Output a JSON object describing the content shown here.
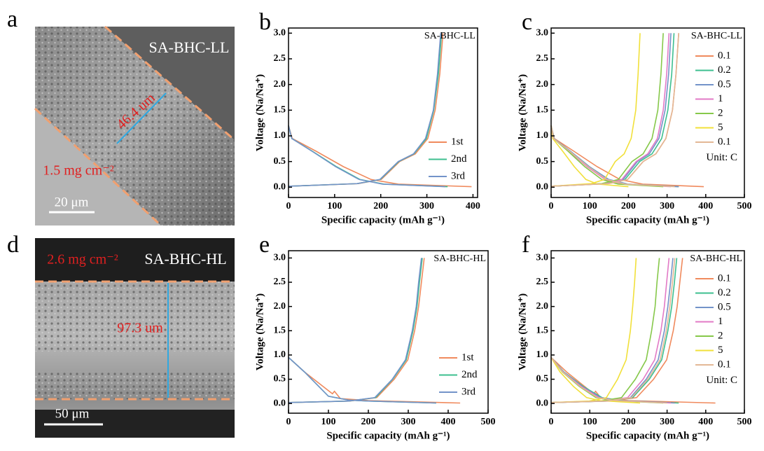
{
  "images": [
    {
      "panel": "a",
      "label": "SA-BHC-LL",
      "thickness": "46.4 um",
      "loading": "1.5 mg cm⁻²",
      "scale_bar": "20 μm"
    },
    {
      "panel": "d",
      "label": "SA-BHC-HL",
      "thickness": "97.3 um",
      "loading": "2.6 mg cm⁻²",
      "scale_bar": "50 μm"
    }
  ],
  "chart_data": [
    {
      "type": "line",
      "panel": "b",
      "label": "SA-BHC-LL",
      "xlabel": "Specific capacity (mAh g⁻¹)",
      "ylabel": "Voltage (Na/Na⁺)",
      "xlim": [
        0,
        410
      ],
      "xticks": [
        0,
        100,
        200,
        300,
        400
      ],
      "ylim": [
        -0.2,
        3.1
      ],
      "yticks": [
        {
          "value": 0,
          "label": "0.0"
        },
        0.5,
        {
          "value": 1,
          "label": "1.0"
        },
        1.5,
        {
          "value": 2,
          "label": "2.0"
        },
        2.5,
        {
          "value": 3,
          "label": "3.0"
        }
      ],
      "legend": "lower right",
      "series": [
        {
          "name": "1st",
          "color": "#f08a5d",
          "x": [
            0,
            8,
            60,
            119,
            179,
            238,
            397,
            null,
            0,
            151,
            201,
            241,
            275,
            302,
            318,
            328,
            335
          ],
          "values": [
            1.2,
            0.95,
            0.7,
            0.4,
            0.15,
            0.06,
            0.01,
            null,
            0.02,
            0.07,
            0.15,
            0.5,
            0.65,
            0.95,
            1.5,
            2.2,
            3.0
          ]
        },
        {
          "name": "2nd",
          "color": "#3dbf8f",
          "x": [
            0,
            7,
            52,
            104,
            155,
            207,
            345,
            null,
            0,
            149,
            199,
            239,
            272,
            299,
            315,
            325,
            332
          ],
          "values": [
            1.2,
            0.95,
            0.7,
            0.4,
            0.15,
            0.06,
            0.01,
            null,
            0.02,
            0.07,
            0.15,
            0.5,
            0.65,
            0.95,
            1.5,
            2.2,
            3.0
          ]
        },
        {
          "name": "3rd",
          "color": "#7393c9",
          "x": [
            0,
            7,
            51,
            102,
            153,
            204,
            340,
            null,
            0,
            149,
            198,
            238,
            271,
            297,
            314,
            323,
            330
          ],
          "values": [
            1.2,
            0.95,
            0.7,
            0.4,
            0.15,
            0.06,
            0.01,
            null,
            0.02,
            0.07,
            0.15,
            0.5,
            0.65,
            0.95,
            1.5,
            2.2,
            3.0
          ]
        }
      ]
    },
    {
      "type": "line",
      "panel": "c",
      "label": "SA-BHC-LL",
      "xlabel": "Specific capacity (mAh g⁻¹)",
      "ylabel": "Voltage (Na/Na⁺)",
      "xlim": [
        0,
        500
      ],
      "xticks": [
        0,
        100,
        200,
        300,
        400,
        500
      ],
      "ylim": [
        -0.2,
        3.1
      ],
      "yticks": [
        {
          "value": 0,
          "label": "0.0"
        },
        0.5,
        {
          "value": 1,
          "label": "1.0"
        },
        1.5,
        {
          "value": 2,
          "label": "2.0"
        },
        2.5,
        {
          "value": 3,
          "label": "3.0"
        }
      ],
      "legend": "upper right",
      "annotation": "Unit: C",
      "series": [
        {
          "name": "0.1",
          "color": "#f08a5d",
          "x": [
            0,
            8,
            59,
            119,
            178,
            237,
            395,
            null,
            0,
            149,
            198,
            238,
            271,
            297,
            314,
            323,
            330
          ],
          "values": [
            1.2,
            0.95,
            0.7,
            0.4,
            0.15,
            0.06,
            0.01,
            null,
            0.02,
            0.07,
            0.15,
            0.5,
            0.65,
            0.95,
            1.5,
            2.2,
            3.0
          ]
        },
        {
          "name": "0.2",
          "color": "#3dbf8f",
          "x": [
            0,
            7,
            50,
            99,
            149,
            198,
            330,
            null,
            0,
            143,
            191,
            229,
            261,
            286,
            302,
            312,
            318
          ],
          "values": [
            1.2,
            0.95,
            0.7,
            0.4,
            0.15,
            0.06,
            0.01,
            null,
            0.02,
            0.07,
            0.15,
            0.5,
            0.65,
            0.95,
            1.5,
            2.2,
            3.0
          ]
        },
        {
          "name": "0.5",
          "color": "#7393c9",
          "x": [
            0,
            7,
            50,
            99,
            149,
            198,
            330,
            null,
            0,
            140,
            186,
            223,
            254,
            279,
            295,
            304,
            310
          ],
          "values": [
            1.2,
            0.95,
            0.7,
            0.4,
            0.15,
            0.06,
            0.01,
            null,
            0.02,
            0.07,
            0.15,
            0.5,
            0.65,
            0.95,
            1.5,
            2.2,
            3.0
          ]
        },
        {
          "name": "1",
          "color": "#e27ac6",
          "x": [
            0,
            6,
            47,
            93,
            140,
            186,
            310,
            null,
            0,
            137,
            183,
            220,
            250,
            275,
            290,
            299,
            305
          ],
          "values": [
            1.2,
            0.95,
            0.7,
            0.4,
            0.15,
            0.06,
            0.01,
            null,
            0.02,
            0.07,
            0.15,
            0.5,
            0.65,
            0.95,
            1.5,
            2.2,
            3.0
          ]
        },
        {
          "name": "2",
          "color": "#86c84a",
          "x": [
            0,
            6,
            44,
            87,
            131,
            174,
            290,
            null,
            0,
            131,
            174,
            209,
            238,
            261,
            276,
            284,
            290
          ],
          "values": [
            1.2,
            0.95,
            0.7,
            0.4,
            0.15,
            0.06,
            0.01,
            null,
            0.02,
            0.07,
            0.15,
            0.5,
            0.65,
            0.95,
            1.5,
            2.2,
            3.0
          ]
        },
        {
          "name": "5",
          "color": "#f1e03a",
          "x": [
            0,
            4,
            30,
            60,
            90,
            120,
            200,
            null,
            0,
            104,
            138,
            166,
            189,
            207,
            219,
            225,
            230
          ],
          "values": [
            1.2,
            0.95,
            0.7,
            0.4,
            0.15,
            0.06,
            0.01,
            null,
            0.02,
            0.07,
            0.15,
            0.5,
            0.65,
            0.95,
            1.5,
            2.2,
            3.0
          ]
        },
        {
          "name": "0.1",
          "color": "#e3b896",
          "x": [
            0,
            6,
            48,
            96,
            144,
            192,
            320,
            null,
            0,
            149,
            198,
            238,
            271,
            297,
            314,
            323,
            330
          ],
          "values": [
            1.2,
            0.95,
            0.7,
            0.4,
            0.15,
            0.06,
            0.01,
            null,
            0.02,
            0.07,
            0.15,
            0.5,
            0.65,
            0.95,
            1.5,
            2.2,
            3.0
          ]
        }
      ]
    },
    {
      "type": "line",
      "panel": "e",
      "label": "SA-BHC-HL",
      "xlabel": "Specific capacity (mAh g⁻¹)",
      "ylabel": "Voltage (Na/Na⁺)",
      "xlim": [
        0,
        500
      ],
      "xticks": [
        0,
        100,
        200,
        300,
        400,
        500
      ],
      "ylim": [
        -0.2,
        3.15
      ],
      "yticks": [
        {
          "value": 0,
          "label": "0.0"
        },
        0.5,
        {
          "value": 1,
          "label": "1.0"
        },
        1.5,
        {
          "value": 2,
          "label": "2.0"
        },
        2.5,
        {
          "value": 3,
          "label": "3.0"
        }
      ],
      "legend": "lower right",
      "series": [
        {
          "name": "1st",
          "color": "#f08a5d",
          "x": [
            0,
            40,
            110,
            115,
            130,
            200,
            430,
            null,
            0,
            153,
            221,
            265,
            299,
            316,
            326,
            333,
            340
          ],
          "values": [
            0.95,
            0.65,
            0.2,
            0.25,
            0.1,
            0.06,
            0.01,
            null,
            0.02,
            0.05,
            0.12,
            0.5,
            0.9,
            1.5,
            2.0,
            2.5,
            3.0
          ]
        },
        {
          "name": "2nd",
          "color": "#3dbf8f",
          "x": [
            0,
            40,
            100,
            150,
            200,
            370,
            null,
            0,
            151,
            218,
            261,
            295,
            312,
            322,
            328,
            335
          ],
          "values": [
            0.95,
            0.65,
            0.15,
            0.07,
            0.05,
            0.01,
            null,
            0.02,
            0.05,
            0.12,
            0.5,
            0.9,
            1.5,
            2.0,
            2.5,
            3.0
          ]
        },
        {
          "name": "3rd",
          "color": "#7393c9",
          "x": [
            0,
            40,
            100,
            150,
            200,
            370,
            null,
            0,
            150,
            216,
            260,
            293,
            310,
            320,
            326,
            333
          ],
          "values": [
            0.95,
            0.65,
            0.15,
            0.07,
            0.05,
            0.01,
            null,
            0.02,
            0.05,
            0.12,
            0.5,
            0.9,
            1.5,
            2.0,
            2.5,
            3.0
          ]
        }
      ]
    },
    {
      "type": "line",
      "panel": "f",
      "label": "SA-BHC-HL",
      "xlabel": "Specific capacity (mAh g⁻¹)",
      "ylabel": "Voltage (Na/Na⁺)",
      "xlim": [
        0,
        500
      ],
      "xticks": [
        0,
        100,
        200,
        300,
        400,
        500
      ],
      "ylim": [
        -0.2,
        3.15
      ],
      "yticks": [
        {
          "value": 0,
          "label": "0.0"
        },
        0.5,
        {
          "value": 1,
          "label": "1.0"
        },
        1.5,
        {
          "value": 2,
          "label": "2.0"
        },
        2.5,
        {
          "value": 3,
          "label": "3.0"
        }
      ],
      "legend": "upper right",
      "annotation": "Unit: C",
      "series": [
        {
          "name": "0.1",
          "color": "#f08a5d",
          "x": [
            0,
            40,
            110,
            115,
            130,
            200,
            425,
            null,
            0,
            153,
            221,
            265,
            299,
            316,
            326,
            333,
            340
          ],
          "values": [
            0.95,
            0.65,
            0.2,
            0.25,
            0.1,
            0.06,
            0.01,
            null,
            0.02,
            0.05,
            0.12,
            0.5,
            0.9,
            1.5,
            2.0,
            2.5,
            3.0
          ]
        },
        {
          "name": "0.2",
          "color": "#3dbf8f",
          "x": [
            0,
            33,
            83,
            132,
            182,
            330,
            null,
            0,
            146,
            211,
            254,
            286,
            302,
            312,
            319,
            325
          ],
          "values": [
            0.95,
            0.65,
            0.35,
            0.12,
            0.06,
            0.01,
            null,
            0.02,
            0.05,
            0.12,
            0.5,
            0.9,
            1.5,
            2.0,
            2.5,
            3.0
          ]
        },
        {
          "name": "0.5",
          "color": "#7393c9",
          "x": [
            0,
            32,
            80,
            128,
            176,
            320,
            null,
            0,
            142,
            205,
            246,
            277,
            293,
            302,
            309,
            315
          ],
          "values": [
            0.95,
            0.65,
            0.35,
            0.12,
            0.06,
            0.01,
            null,
            0.02,
            0.05,
            0.12,
            0.5,
            0.9,
            1.5,
            2.0,
            2.5,
            3.0
          ]
        },
        {
          "name": "1",
          "color": "#e27ac6",
          "x": [
            0,
            31,
            78,
            124,
            171,
            310,
            null,
            0,
            137,
            198,
            238,
            268,
            284,
            293,
            299,
            305
          ],
          "values": [
            0.95,
            0.65,
            0.35,
            0.12,
            0.06,
            0.01,
            null,
            0.02,
            0.05,
            0.12,
            0.5,
            0.9,
            1.5,
            2.0,
            2.5,
            3.0
          ]
        },
        {
          "name": "2",
          "color": "#86c84a",
          "x": [
            0,
            29,
            73,
            116,
            160,
            290,
            null,
            0,
            126,
            182,
            218,
            246,
            260,
            269,
            274,
            280
          ],
          "values": [
            0.95,
            0.65,
            0.35,
            0.12,
            0.06,
            0.01,
            null,
            0.02,
            0.05,
            0.12,
            0.5,
            0.9,
            1.5,
            2.0,
            2.5,
            3.0
          ]
        },
        {
          "name": "5",
          "color": "#f1e03a",
          "x": [
            0,
            23,
            58,
            92,
            127,
            230,
            null,
            0,
            99,
            143,
            172,
            194,
            205,
            211,
            216,
            220
          ],
          "values": [
            0.95,
            0.65,
            0.35,
            0.12,
            0.06,
            0.01,
            null,
            0.02,
            0.05,
            0.12,
            0.5,
            0.9,
            1.5,
            2.0,
            2.5,
            3.0
          ]
        },
        {
          "name": "0.1",
          "color": "#e3b896",
          "x": [
            0,
            30,
            75,
            120,
            165,
            300,
            null,
            0,
            144,
            208,
            250,
            282,
            298,
            307,
            314,
            320
          ],
          "values": [
            0.95,
            0.65,
            0.35,
            0.12,
            0.06,
            0.01,
            null,
            0.02,
            0.05,
            0.12,
            0.5,
            0.9,
            1.5,
            2.0,
            2.5,
            3.0
          ]
        }
      ]
    }
  ]
}
